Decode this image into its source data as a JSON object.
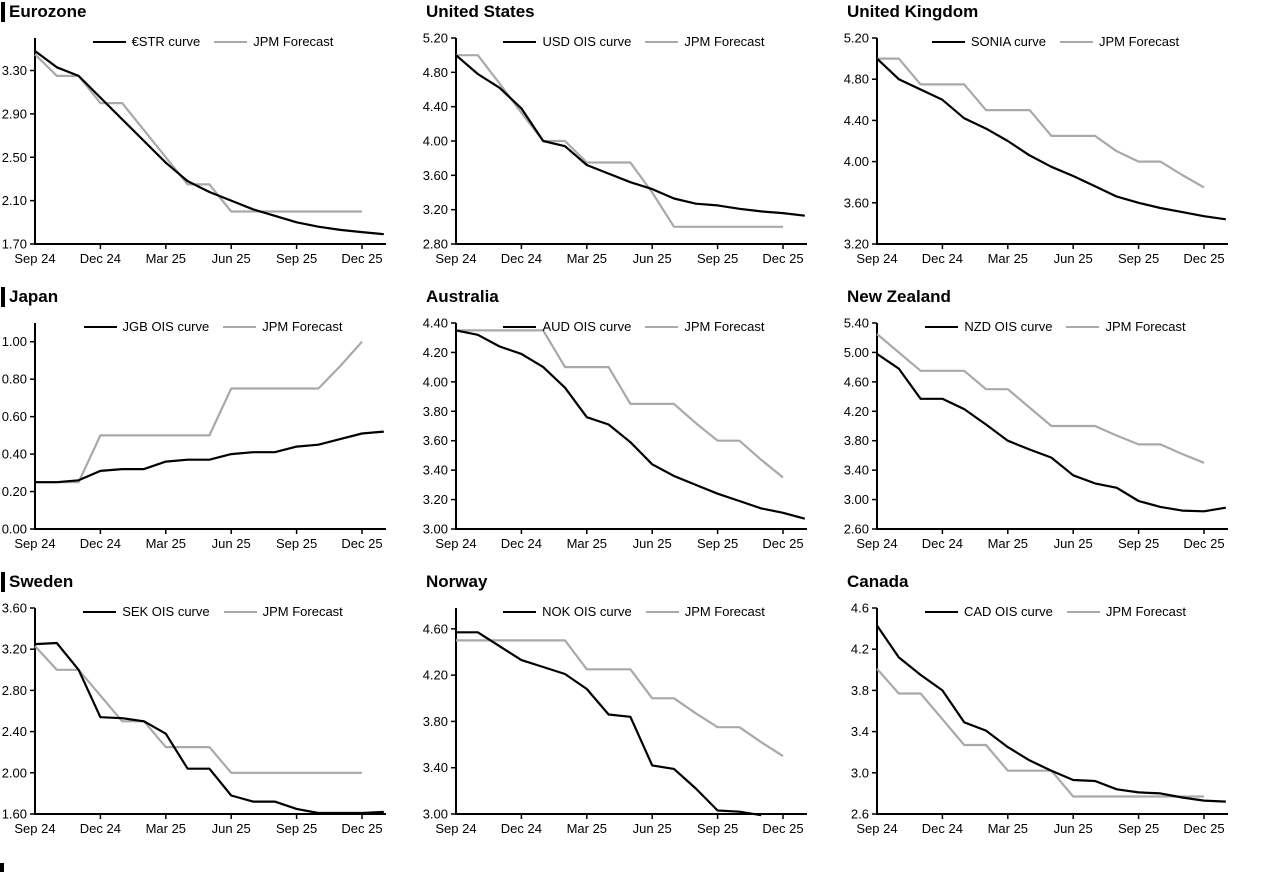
{
  "colors": {
    "curve": "#000000",
    "forecast": "#a9a9a9",
    "axis": "#000000"
  },
  "x_axis": {
    "tick_labels": [
      "Sep 24",
      "Dec 24",
      "Mar 25",
      "Jun 25",
      "Sep 25",
      "Dec 25"
    ],
    "tick_month_indices": [
      0,
      3,
      6,
      9,
      12,
      15
    ]
  },
  "chart_data": [
    {
      "type": "line",
      "title": "Eurozone",
      "ylim": [
        1.7,
        3.6
      ],
      "yticks": [
        3.3,
        2.9,
        2.5,
        2.1,
        1.7
      ],
      "ydecimals": 2,
      "grid": false,
      "legend_position": "top-center",
      "x_tick_labels": [
        "Sep 24",
        "Dec 24",
        "Mar 25",
        "Jun 25",
        "Sep 25",
        "Dec 25"
      ],
      "x_tick_indices": [
        0,
        3,
        6,
        9,
        12,
        15
      ],
      "series": [
        {
          "name": "€STR curve",
          "color": "#000000",
          "values": [
            3.48,
            3.33,
            3.25,
            3.05,
            2.85,
            2.65,
            2.45,
            2.28,
            2.18,
            2.1,
            2.02,
            1.96,
            1.9,
            1.86,
            1.83,
            1.81,
            1.79
          ]
        },
        {
          "name": "JPM Forecast",
          "color": "#a9a9a9",
          "values": [
            3.45,
            3.25,
            3.25,
            3.0,
            3.0,
            2.75,
            2.5,
            2.25,
            2.25,
            2.0,
            2.0,
            2.0,
            2.0,
            2.0,
            2.0,
            2.0
          ]
        }
      ]
    },
    {
      "type": "line",
      "title": "United States",
      "ylim": [
        2.8,
        5.2
      ],
      "yticks": [
        5.2,
        4.8,
        4.4,
        4.0,
        3.6,
        3.2,
        2.8
      ],
      "ydecimals": 2,
      "grid": false,
      "legend_position": "top-center",
      "x_tick_labels": [
        "Sep 24",
        "Dec 24",
        "Mar 25",
        "Jun 25",
        "Sep 25",
        "Dec 25"
      ],
      "x_tick_indices": [
        0,
        3,
        6,
        9,
        12,
        15
      ],
      "series": [
        {
          "name": "USD OIS curve",
          "color": "#000000",
          "values": [
            5.0,
            4.78,
            4.62,
            4.38,
            4.0,
            3.94,
            3.72,
            3.62,
            3.52,
            3.44,
            3.33,
            3.27,
            3.25,
            3.21,
            3.18,
            3.16,
            3.13
          ]
        },
        {
          "name": "JPM Forecast",
          "color": "#a9a9a9",
          "values": [
            5.0,
            5.0,
            4.67,
            4.33,
            4.0,
            4.0,
            3.75,
            3.75,
            3.75,
            3.4,
            3.0,
            3.0,
            3.0,
            3.0,
            3.0,
            3.0
          ]
        }
      ]
    },
    {
      "type": "line",
      "title": "United Kingdom",
      "ylim": [
        3.2,
        5.2
      ],
      "yticks": [
        5.2,
        4.8,
        4.4,
        4.0,
        3.6,
        3.2
      ],
      "ydecimals": 2,
      "grid": false,
      "legend_position": "top-center",
      "x_tick_labels": [
        "Sep 24",
        "Dec 24",
        "Mar 25",
        "Jun 25",
        "Sep 25",
        "Dec 25"
      ],
      "x_tick_indices": [
        0,
        3,
        6,
        9,
        12,
        15
      ],
      "series": [
        {
          "name": "SONIA curve",
          "color": "#000000",
          "values": [
            5.0,
            4.8,
            4.7,
            4.6,
            4.42,
            4.32,
            4.2,
            4.06,
            3.95,
            3.86,
            3.76,
            3.66,
            3.6,
            3.55,
            3.51,
            3.47,
            3.44
          ]
        },
        {
          "name": "JPM Forecast",
          "color": "#a9a9a9",
          "values": [
            5.0,
            5.0,
            4.75,
            4.75,
            4.75,
            4.5,
            4.5,
            4.5,
            4.25,
            4.25,
            4.25,
            4.1,
            4.0,
            4.0,
            3.87,
            3.75
          ]
        }
      ]
    },
    {
      "type": "line",
      "title": "Japan",
      "ylim": [
        0.0,
        1.1
      ],
      "yticks": [
        1.0,
        0.8,
        0.6,
        0.4,
        0.2,
        0.0
      ],
      "ydecimals": 2,
      "grid": false,
      "legend_position": "top-center",
      "x_tick_labels": [
        "Sep 24",
        "Dec 24",
        "Mar 25",
        "Jun 25",
        "Sep 25",
        "Dec 25"
      ],
      "x_tick_indices": [
        0,
        3,
        6,
        9,
        12,
        15
      ],
      "series": [
        {
          "name": "JGB OIS curve",
          "color": "#000000",
          "values": [
            0.25,
            0.25,
            0.26,
            0.31,
            0.32,
            0.32,
            0.36,
            0.37,
            0.37,
            0.4,
            0.41,
            0.41,
            0.44,
            0.45,
            0.48,
            0.51,
            0.52
          ]
        },
        {
          "name": "JPM Forecast",
          "color": "#a9a9a9",
          "values": [
            0.25,
            0.25,
            0.25,
            0.5,
            0.5,
            0.5,
            0.5,
            0.5,
            0.5,
            0.75,
            0.75,
            0.75,
            0.75,
            0.75,
            0.87,
            1.0
          ]
        }
      ]
    },
    {
      "type": "line",
      "title": "Australia",
      "ylim": [
        3.0,
        4.4
      ],
      "yticks": [
        4.4,
        4.2,
        4.0,
        3.8,
        3.6,
        3.4,
        3.2,
        3.0
      ],
      "ydecimals": 2,
      "grid": false,
      "legend_position": "top-center",
      "x_tick_labels": [
        "Sep 24",
        "Dec 24",
        "Mar 25",
        "Jun 25",
        "Sep 25",
        "Dec 25"
      ],
      "x_tick_indices": [
        0,
        3,
        6,
        9,
        12,
        15
      ],
      "series": [
        {
          "name": "AUD OIS curve",
          "color": "#000000",
          "values": [
            4.35,
            4.32,
            4.24,
            4.19,
            4.1,
            3.96,
            3.76,
            3.71,
            3.59,
            3.44,
            3.36,
            3.3,
            3.24,
            3.19,
            3.14,
            3.11,
            3.07
          ]
        },
        {
          "name": "JPM Forecast",
          "color": "#a9a9a9",
          "values": [
            4.35,
            4.35,
            4.35,
            4.35,
            4.35,
            4.1,
            4.1,
            4.1,
            3.85,
            3.85,
            3.85,
            3.72,
            3.6,
            3.6,
            3.47,
            3.35
          ]
        }
      ]
    },
    {
      "type": "line",
      "title": "New Zealand",
      "ylim": [
        2.6,
        5.4
      ],
      "yticks": [
        5.4,
        5.0,
        4.6,
        4.2,
        3.8,
        3.4,
        3.0,
        2.6
      ],
      "ydecimals": 2,
      "grid": false,
      "legend_position": "top-center",
      "x_tick_labels": [
        "Sep 24",
        "Dec 24",
        "Mar 25",
        "Jun 25",
        "Sep 25",
        "Dec 25"
      ],
      "x_tick_indices": [
        0,
        3,
        6,
        9,
        12,
        15
      ],
      "series": [
        {
          "name": "NZD OIS curve",
          "color": "#000000",
          "values": [
            4.98,
            4.78,
            4.37,
            4.37,
            4.23,
            4.02,
            3.8,
            3.68,
            3.57,
            3.33,
            3.22,
            3.16,
            2.98,
            2.9,
            2.85,
            2.84,
            2.89
          ]
        },
        {
          "name": "JPM Forecast",
          "color": "#a9a9a9",
          "values": [
            5.25,
            5.0,
            4.75,
            4.75,
            4.75,
            4.5,
            4.5,
            4.25,
            4.0,
            4.0,
            4.0,
            3.87,
            3.75,
            3.75,
            3.62,
            3.5
          ]
        }
      ]
    },
    {
      "type": "line",
      "title": "Sweden",
      "ylim": [
        1.6,
        3.6
      ],
      "yticks": [
        3.6,
        3.2,
        2.8,
        2.4,
        2.0,
        1.6
      ],
      "ydecimals": 2,
      "grid": false,
      "legend_position": "top-center",
      "x_tick_labels": [
        "Sep 24",
        "Dec 24",
        "Mar 25",
        "Jun 25",
        "Sep 25",
        "Dec 25"
      ],
      "x_tick_indices": [
        0,
        3,
        6,
        9,
        12,
        15
      ],
      "series": [
        {
          "name": "SEK OIS curve",
          "color": "#000000",
          "values": [
            3.25,
            3.26,
            3.0,
            2.54,
            2.53,
            2.5,
            2.38,
            2.04,
            2.04,
            1.78,
            1.72,
            1.72,
            1.65,
            1.61,
            1.61,
            1.61,
            1.62
          ]
        },
        {
          "name": "JPM Forecast",
          "color": "#a9a9a9",
          "values": [
            3.23,
            3.0,
            3.0,
            2.75,
            2.5,
            2.5,
            2.25,
            2.25,
            2.25,
            2.0,
            2.0,
            2.0,
            2.0,
            2.0,
            2.0,
            2.0
          ]
        }
      ]
    },
    {
      "type": "line",
      "title": "Norway",
      "ylim": [
        3.0,
        4.78
      ],
      "yticks": [
        4.6,
        4.2,
        3.8,
        3.4,
        3.0
      ],
      "ydecimals": 2,
      "grid": false,
      "legend_position": "top-center",
      "x_tick_labels": [
        "Sep 24",
        "Dec 24",
        "Mar 25",
        "Jun 25",
        "Sep 25",
        "Dec 25"
      ],
      "x_tick_indices": [
        0,
        3,
        6,
        9,
        12,
        15
      ],
      "series": [
        {
          "name": "NOK OIS curve",
          "color": "#000000",
          "values": [
            4.57,
            4.57,
            4.45,
            4.33,
            4.27,
            4.21,
            4.08,
            3.86,
            3.84,
            3.42,
            3.39,
            3.22,
            3.03,
            3.02,
            2.99
          ]
        },
        {
          "name": "JPM Forecast",
          "color": "#a9a9a9",
          "values": [
            4.5,
            4.5,
            4.5,
            4.5,
            4.5,
            4.5,
            4.25,
            4.25,
            4.25,
            4.0,
            4.0,
            3.87,
            3.75,
            3.75,
            3.62,
            3.5
          ]
        }
      ]
    },
    {
      "type": "line",
      "title": "Canada",
      "ylim": [
        2.6,
        4.6
      ],
      "yticks": [
        4.6,
        4.2,
        3.8,
        3.4,
        3.0,
        2.6
      ],
      "ydecimals": 1,
      "grid": false,
      "legend_position": "top-center",
      "x_tick_labels": [
        "Sep 24",
        "Dec 24",
        "Mar 25",
        "Jun 25",
        "Sep 25",
        "Dec 25"
      ],
      "x_tick_indices": [
        0,
        3,
        6,
        9,
        12,
        15
      ],
      "series": [
        {
          "name": "CAD OIS curve",
          "color": "#000000",
          "values": [
            4.43,
            4.12,
            3.95,
            3.8,
            3.49,
            3.41,
            3.25,
            3.12,
            3.02,
            2.93,
            2.92,
            2.84,
            2.81,
            2.8,
            2.76,
            2.73,
            2.72
          ]
        },
        {
          "name": "JPM Forecast",
          "color": "#a9a9a9",
          "values": [
            4.01,
            3.77,
            3.77,
            3.52,
            3.27,
            3.27,
            3.02,
            3.02,
            3.02,
            2.77,
            2.77,
            2.77,
            2.77,
            2.77,
            2.77,
            2.77
          ]
        }
      ]
    }
  ]
}
